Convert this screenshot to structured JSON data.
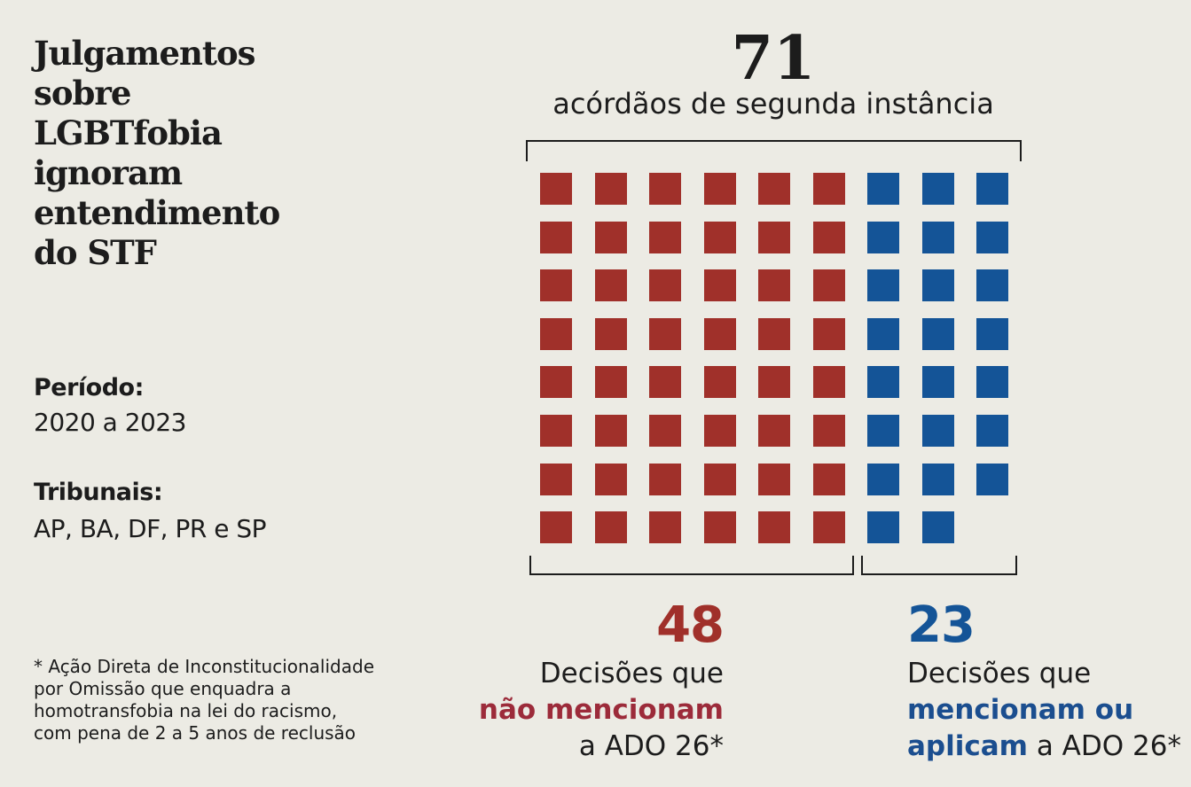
{
  "title": [
    "Julgamentos",
    "sobre",
    "LGBTfobia",
    "ignoram",
    "entendimento",
    "do STF"
  ],
  "period": {
    "label": "Período:",
    "value": "2020 a 2023"
  },
  "courts": {
    "label": "Tribunais:",
    "value": "AP, BA, DF, PR e SP"
  },
  "note": [
    "* Ação Direta de Inconstitucionalidade",
    "por Omissão que enquadra a",
    "homotransfobia na lei do racismo,",
    "com pena de 2 a 5 anos de reclusão"
  ],
  "total": {
    "value": "71",
    "label": "acórdãos de segunda instância"
  },
  "groups": [
    {
      "value": "48",
      "line1": "Decisões que",
      "highlight": "não mencionam",
      "line3": "a ADO 26*"
    },
    {
      "value": "23",
      "line1": "Decisões que",
      "highlight": "mencionam ou",
      "highlight2": "aplicam",
      "line3": " a ADO 26*"
    }
  ],
  "colors": {
    "red": "#a0302a",
    "blue": "#145497",
    "red_text": "#9c2b3a",
    "blue_text": "#1b4e8f",
    "background": "#ecebe4"
  },
  "chart_data": {
    "type": "waffle",
    "columns": 9,
    "rows": 8,
    "series": [
      {
        "name": "não mencionam",
        "value": 48,
        "color": "#a0302a"
      },
      {
        "name": "mencionam ou aplicam",
        "value": 23,
        "color": "#145497"
      }
    ],
    "total": 71
  }
}
